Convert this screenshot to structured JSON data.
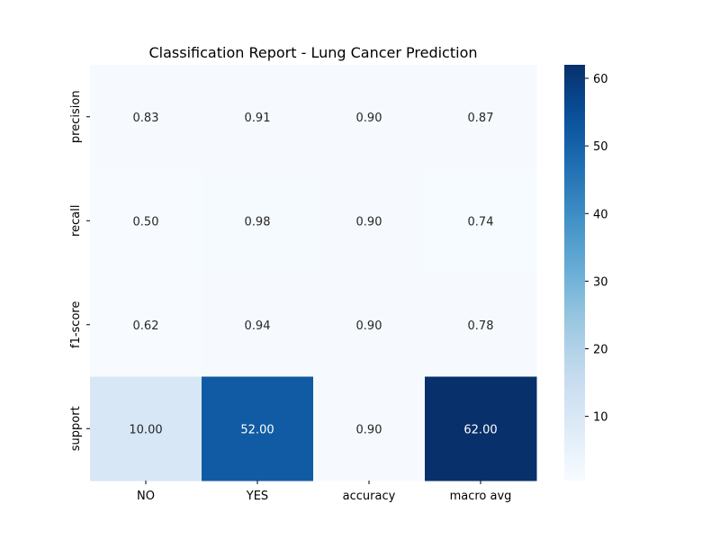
{
  "chart_data": {
    "type": "heatmap",
    "title": "Classification Report - Lung Cancer Prediction",
    "xlabel": "",
    "ylabel": "",
    "x_categories": [
      "NO",
      "YES",
      "accuracy",
      "macro avg"
    ],
    "y_categories": [
      "precision",
      "recall",
      "f1-score",
      "support"
    ],
    "values": [
      [
        0.83,
        0.91,
        0.9,
        0.87
      ],
      [
        0.5,
        0.98,
        0.9,
        0.74
      ],
      [
        0.62,
        0.94,
        0.9,
        0.78
      ],
      [
        10.0,
        52.0,
        0.9,
        62.0
      ]
    ],
    "cell_labels": [
      [
        "0.83",
        "0.91",
        "0.90",
        "0.87"
      ],
      [
        "0.50",
        "0.98",
        "0.90",
        "0.74"
      ],
      [
        "0.62",
        "0.94",
        "0.90",
        "0.78"
      ],
      [
        "10.00",
        "52.00",
        "0.90",
        "62.00"
      ]
    ],
    "colormap": "Blues",
    "color_range": [
      0.5,
      62.0
    ],
    "colorbar_ticks": [
      10,
      20,
      30,
      40,
      50,
      60
    ],
    "colorbar_tick_labels": [
      "10",
      "20",
      "30",
      "40",
      "50",
      "60"
    ],
    "colorbar_placement": "right",
    "grid": false
  }
}
